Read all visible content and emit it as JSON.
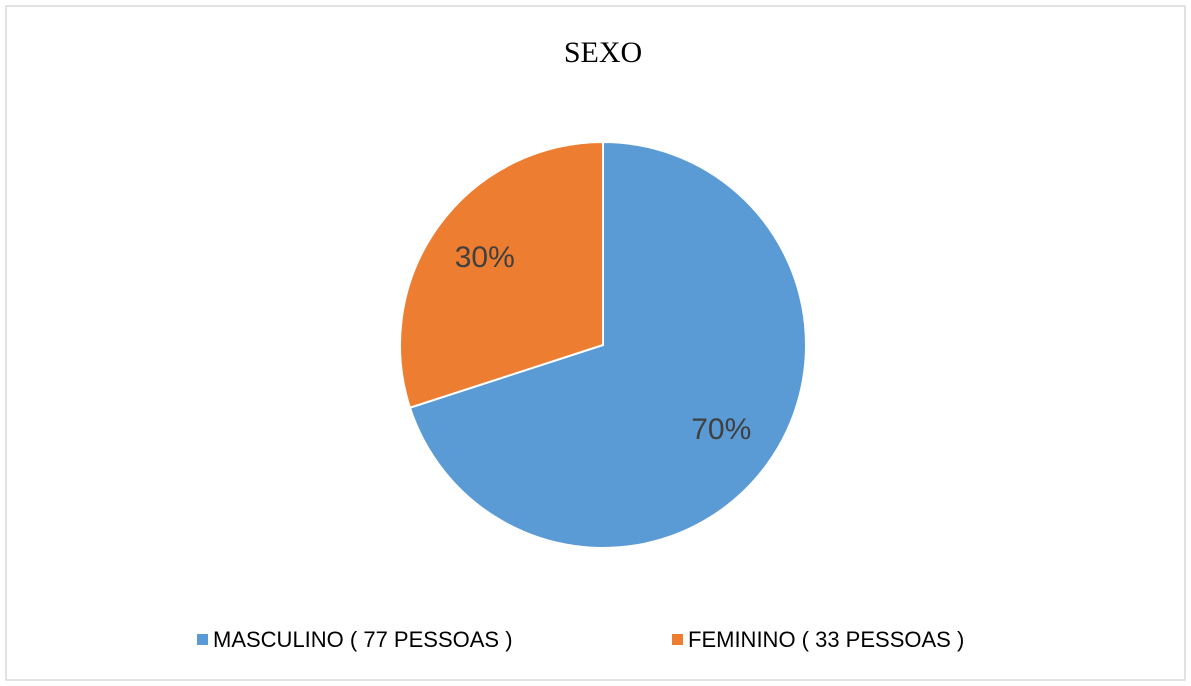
{
  "chart_data": {
    "type": "pie",
    "title": "SEXO",
    "categories": [
      "MASCULINO ( 77 PESSOAS )",
      "FEMININO ( 33 PESSOAS )"
    ],
    "values": [
      70,
      30
    ],
    "value_labels": [
      "70%",
      "30%"
    ],
    "colors": [
      "#5b9bd5",
      "#ed7d31"
    ],
    "legend": "bottom"
  }
}
